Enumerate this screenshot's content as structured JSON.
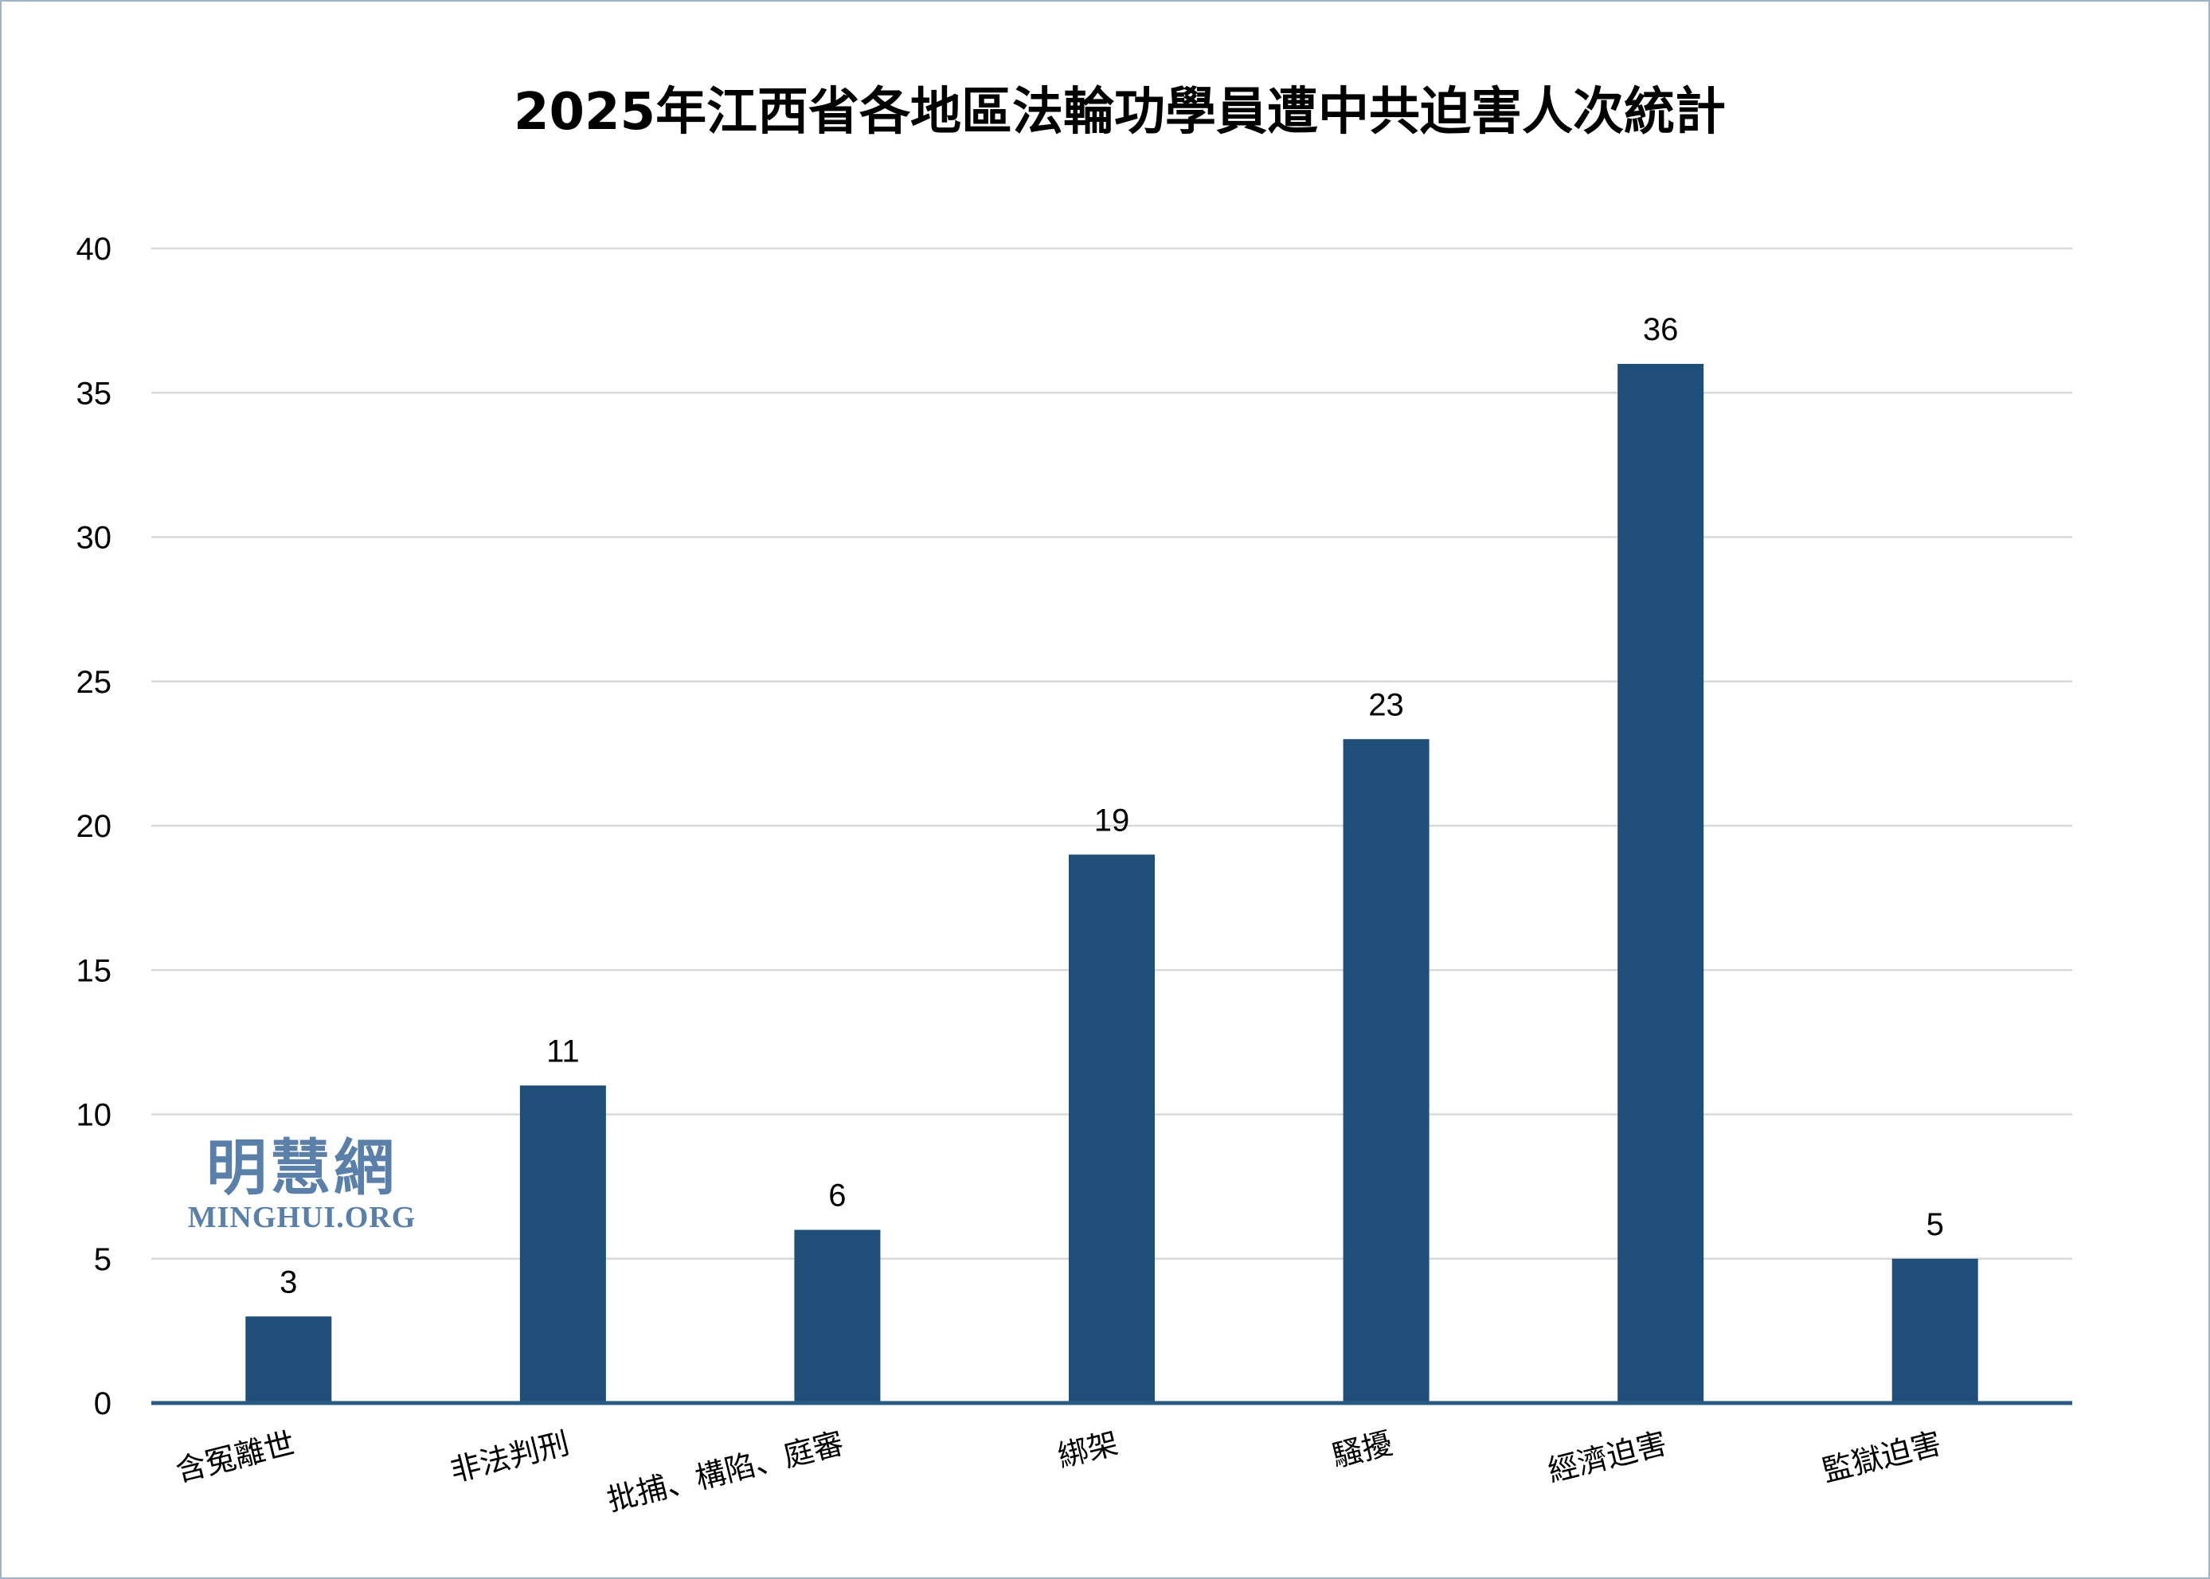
{
  "chart_data": {
    "type": "bar",
    "title": "2025年江西省各地區法輪功學員遭中共迫害人次統計",
    "categories": [
      "含冤離世",
      "非法判刑",
      "批捕、構陷、庭審",
      "綁架",
      "騷擾",
      "經濟迫害",
      "監獄迫害"
    ],
    "values": [
      3,
      11,
      6,
      19,
      23,
      36,
      5
    ],
    "ylim": [
      0,
      40
    ],
    "yticks": [
      0,
      5,
      10,
      15,
      20,
      25,
      30,
      35,
      40
    ],
    "xlabel": "",
    "ylabel": "",
    "grid": true,
    "legend": "none",
    "bar_color": "#1f4e79",
    "grid_color": "#d9d9d9",
    "axis_color": "#2b5a85"
  },
  "watermark": {
    "chinese": "明慧網",
    "english": "MINGHUI.ORG"
  }
}
